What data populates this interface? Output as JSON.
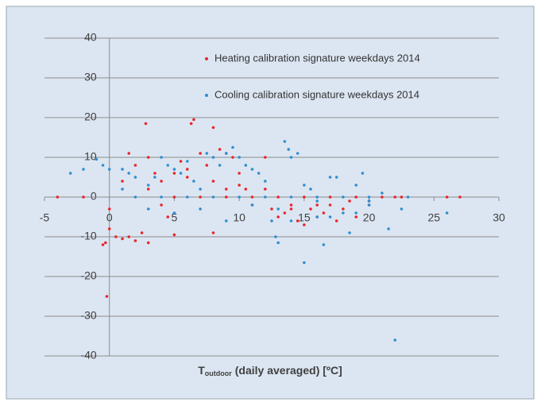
{
  "chart_data": {
    "type": "scatter",
    "xlabel_main": "T",
    "xlabel_sub": "outdoor",
    "xlabel_rest": "(daily averaged) [ºC]",
    "xlim": [
      -5,
      30
    ],
    "xticks": [
      -5,
      0,
      5,
      10,
      15,
      20,
      25,
      30
    ],
    "ylim": [
      -40,
      40
    ],
    "yticks": [
      -40,
      -30,
      -20,
      -10,
      0,
      10,
      20,
      30,
      40
    ],
    "grid": true,
    "legend": "upper right",
    "series": [
      {
        "name": "Heating calibration signature weekdays 2014",
        "color": "#e8262b",
        "x": [
          -4,
          -2,
          -0.5,
          -0.3,
          -0.2,
          0,
          0,
          0.5,
          1,
          1.5,
          2,
          2.5,
          3,
          2.8,
          3,
          1.5,
          2,
          3.5,
          4,
          4.5,
          5,
          5.5,
          6,
          6.5,
          6.3,
          7,
          7.5,
          8,
          8,
          8.5,
          9,
          9.5,
          10,
          10,
          10.5,
          11,
          12,
          12,
          12.5,
          13,
          13.5,
          14,
          14.5,
          15,
          15.5,
          16,
          16.5,
          17,
          17.5,
          18,
          18.5,
          19,
          20,
          21,
          22,
          22.5,
          26,
          27,
          5,
          7,
          9,
          11,
          13,
          15,
          17,
          19,
          3,
          4,
          5,
          6,
          8,
          9,
          1,
          14,
          16,
          20
        ],
        "y": [
          0,
          0,
          -12,
          -11.5,
          -25,
          -3,
          -8,
          -10,
          -10.5,
          -10,
          -11,
          -9,
          -11.5,
          18.5,
          10,
          11,
          8,
          6,
          -2,
          -5,
          -9.5,
          9,
          5,
          19.5,
          18.5,
          11,
          8,
          17.5,
          -9,
          12,
          11,
          10,
          6,
          3,
          2,
          -2,
          10,
          2,
          -3,
          -5,
          -4,
          -2,
          -6,
          -7,
          -3,
          -5,
          -4,
          -2,
          -6,
          -3,
          -1,
          -5,
          -2,
          0,
          0,
          0,
          0,
          0,
          0,
          0,
          0,
          0,
          0,
          0,
          0,
          0,
          2,
          4,
          6,
          7,
          4,
          2,
          4,
          -3,
          -2,
          -1
        ]
      },
      {
        "name": "Cooling calibration signature weekdays 2014",
        "color": "#2e8fd0",
        "x": [
          -3,
          -2,
          -1,
          -0.5,
          0,
          1,
          1.5,
          2,
          3,
          3.5,
          4,
          4.5,
          5,
          5.5,
          6,
          6.5,
          7,
          7.5,
          8,
          8.5,
          9,
          9.5,
          10,
          10.5,
          11,
          11.5,
          12,
          12.5,
          12.8,
          13,
          13.5,
          13.8,
          14,
          14.5,
          15,
          15,
          15.5,
          16,
          16.5,
          17,
          17.5,
          18,
          18.5,
          19,
          19.5,
          20,
          20,
          21,
          21.5,
          22,
          22.5,
          23,
          26,
          2,
          4,
          6,
          8,
          10,
          12,
          14,
          16,
          18,
          20,
          1,
          3,
          5,
          7,
          9,
          11,
          13,
          14,
          16,
          17,
          19
        ],
        "y": [
          6,
          7,
          9.5,
          8,
          7,
          7,
          6,
          5,
          3,
          5,
          10,
          8,
          7,
          6,
          9,
          4,
          2,
          11,
          10,
          8,
          11,
          12.5,
          10,
          8,
          7,
          6,
          4,
          -6,
          -10,
          -11.5,
          14,
          12,
          10,
          11,
          -16.5,
          3,
          2,
          -1,
          -12,
          5,
          5,
          -4,
          -9,
          3,
          6,
          -2,
          -1,
          1,
          -8,
          -36,
          -3,
          0,
          -4,
          0,
          0,
          0,
          0,
          0,
          0,
          0,
          0,
          0,
          0,
          2,
          -3,
          -4,
          -3,
          -6,
          -2,
          -3,
          -6,
          -5,
          -5,
          -4
        ]
      }
    ]
  }
}
